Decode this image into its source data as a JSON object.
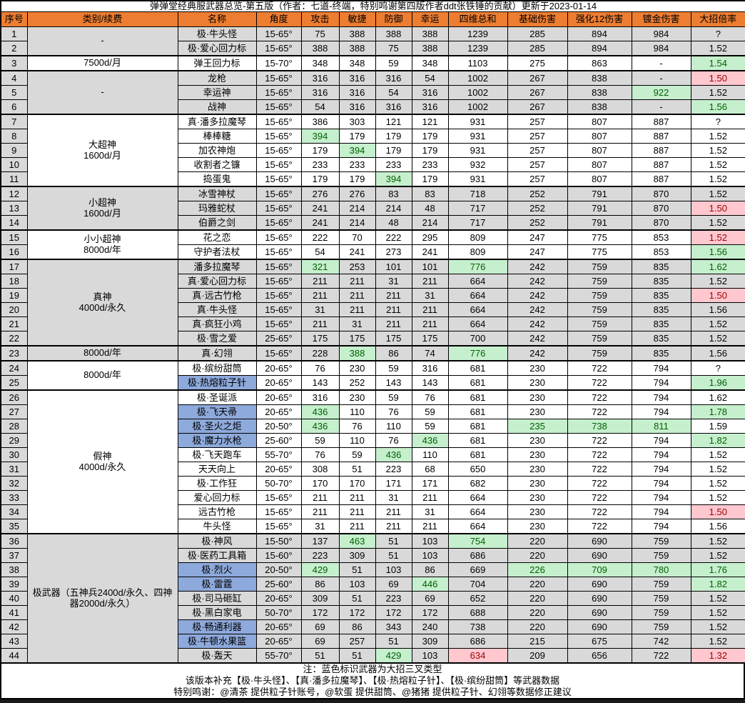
{
  "title": "弹弹堂经典服武器总览-第五版（作者：七道-终端，特别鸣谢第四版作者ddt张铁锤的贡献）更新于2023-01-14",
  "columns": [
    "序号",
    "类别/续费",
    "名称",
    "角度",
    "攻击",
    "敏捷",
    "防御",
    "幸运",
    "四维总和",
    "基础伤害",
    "强化12伤害",
    "镀金伤害",
    "大招倍率"
  ],
  "column_keys": [
    "no",
    "category",
    "name",
    "angle",
    "atk",
    "agi",
    "def",
    "luck",
    "total",
    "base",
    "p12",
    "gold",
    "ult"
  ],
  "groups": [
    {
      "label": "-",
      "start": 1,
      "end": 2,
      "gray": true
    },
    {
      "label": "7500d/月",
      "start": 3,
      "end": 3,
      "gray": false
    },
    {
      "label": "-",
      "start": 4,
      "end": 6,
      "gray": true
    },
    {
      "label": "大超神\n1600d/月",
      "start": 7,
      "end": 11,
      "gray": false
    },
    {
      "label": "小超神\n1600d/月",
      "start": 12,
      "end": 14,
      "gray": true
    },
    {
      "label": "小小超神\n8000d/年",
      "start": 15,
      "end": 16,
      "gray": false
    },
    {
      "label": "真神\n4000d/永久",
      "start": 17,
      "end": 22,
      "gray": true
    },
    {
      "label": "8000d/年",
      "start": 23,
      "end": 23,
      "gray": true
    },
    {
      "label": "8000d/年",
      "start": 24,
      "end": 25,
      "gray": false
    },
    {
      "label": "假神\n4000d/永久",
      "start": 26,
      "end": 35,
      "gray": false
    },
    {
      "label": "极武器（五神兵2400d/永久、四神器2000d/永久）",
      "start": 36,
      "end": 44,
      "gray": true
    }
  ],
  "rows": [
    {
      "no": 1,
      "name": "极·牛头怪",
      "blue": false,
      "angle": "15-65°",
      "atk": "75",
      "agi": "388",
      "def": "388",
      "luck": "388",
      "total": "1239",
      "base": "285",
      "p12": "894",
      "gold": "984",
      "ult": "?",
      "hl": {}
    },
    {
      "no": 2,
      "name": "极·爱心回力标",
      "blue": false,
      "angle": "15-65°",
      "atk": "388",
      "agi": "388",
      "def": "75",
      "luck": "388",
      "total": "1239",
      "base": "285",
      "p12": "894",
      "gold": "984",
      "ult": "1.52",
      "hl": {}
    },
    {
      "no": 3,
      "name": "弹王回力标",
      "blue": false,
      "angle": "15-70°",
      "atk": "348",
      "agi": "348",
      "def": "59",
      "luck": "348",
      "total": "1103",
      "base": "275",
      "p12": "863",
      "gold": "-",
      "ult": "1.54",
      "hl": {
        "ult": "g"
      }
    },
    {
      "no": 4,
      "name": "龙枪",
      "blue": false,
      "angle": "15-65°",
      "atk": "316",
      "agi": "316",
      "def": "316",
      "luck": "54",
      "total": "1002",
      "base": "267",
      "p12": "838",
      "gold": "-",
      "ult": "1.50",
      "hl": {
        "ult": "r"
      }
    },
    {
      "no": 5,
      "name": "幸运神",
      "blue": false,
      "angle": "15-65°",
      "atk": "316",
      "agi": "316",
      "def": "54",
      "luck": "316",
      "total": "1002",
      "base": "267",
      "p12": "838",
      "gold": "922",
      "ult": "1.52",
      "hl": {
        "gold": "g"
      }
    },
    {
      "no": 6,
      "name": "战神",
      "blue": false,
      "angle": "15-65°",
      "atk": "54",
      "agi": "316",
      "def": "316",
      "luck": "316",
      "total": "1002",
      "base": "267",
      "p12": "838",
      "gold": "-",
      "ult": "1.56",
      "hl": {
        "ult": "g"
      }
    },
    {
      "no": 7,
      "name": "真·潘多拉魔琴",
      "blue": false,
      "angle": "15-65°",
      "atk": "386",
      "agi": "303",
      "def": "121",
      "luck": "121",
      "total": "931",
      "base": "257",
      "p12": "807",
      "gold": "887",
      "ult": "?",
      "hl": {}
    },
    {
      "no": 8,
      "name": "棒棒糖",
      "blue": false,
      "angle": "15-65°",
      "atk": "394",
      "agi": "179",
      "def": "179",
      "luck": "179",
      "total": "931",
      "base": "257",
      "p12": "807",
      "gold": "887",
      "ult": "1.52",
      "hl": {
        "atk": "g"
      }
    },
    {
      "no": 9,
      "name": "加农神炮",
      "blue": false,
      "angle": "15-65°",
      "atk": "179",
      "agi": "394",
      "def": "179",
      "luck": "179",
      "total": "931",
      "base": "257",
      "p12": "807",
      "gold": "887",
      "ult": "1.52",
      "hl": {
        "agi": "g"
      }
    },
    {
      "no": 10,
      "name": "收割者之镰",
      "blue": false,
      "angle": "15-65°",
      "atk": "233",
      "agi": "233",
      "def": "233",
      "luck": "233",
      "total": "932",
      "base": "257",
      "p12": "807",
      "gold": "887",
      "ult": "1.52",
      "hl": {}
    },
    {
      "no": 11,
      "name": "捣蛋鬼",
      "blue": false,
      "angle": "15-65°",
      "atk": "179",
      "agi": "179",
      "def": "394",
      "luck": "179",
      "total": "931",
      "base": "257",
      "p12": "807",
      "gold": "887",
      "ult": "1.52",
      "hl": {
        "def": "g"
      }
    },
    {
      "no": 12,
      "name": "冰雪神杖",
      "blue": false,
      "angle": "15-65°",
      "atk": "276",
      "agi": "276",
      "def": "83",
      "luck": "83",
      "total": "718",
      "base": "252",
      "p12": "791",
      "gold": "870",
      "ult": "1.52",
      "hl": {}
    },
    {
      "no": 13,
      "name": "玛雅蛇杖",
      "blue": false,
      "angle": "15-65°",
      "atk": "241",
      "agi": "214",
      "def": "214",
      "luck": "48",
      "total": "717",
      "base": "252",
      "p12": "791",
      "gold": "870",
      "ult": "1.50",
      "hl": {
        "ult": "r"
      }
    },
    {
      "no": 14,
      "name": "伯爵之剑",
      "blue": false,
      "angle": "15-65°",
      "atk": "241",
      "agi": "214",
      "def": "48",
      "luck": "214",
      "total": "717",
      "base": "252",
      "p12": "791",
      "gold": "870",
      "ult": "1.52",
      "hl": {}
    },
    {
      "no": 15,
      "name": "花之恋",
      "blue": false,
      "angle": "15-65°",
      "atk": "222",
      "agi": "70",
      "def": "222",
      "luck": "295",
      "total": "809",
      "base": "247",
      "p12": "775",
      "gold": "853",
      "ult": "1.52",
      "hl": {
        "ult": "r"
      }
    },
    {
      "no": 16,
      "name": "守护者法杖",
      "blue": false,
      "angle": "15-65°",
      "atk": "54",
      "agi": "241",
      "def": "273",
      "luck": "241",
      "total": "809",
      "base": "247",
      "p12": "775",
      "gold": "853",
      "ult": "1.56",
      "hl": {
        "ult": "g"
      }
    },
    {
      "no": 17,
      "name": "潘多拉魔琴",
      "blue": false,
      "angle": "15-65°",
      "atk": "321",
      "agi": "253",
      "def": "101",
      "luck": "101",
      "total": "776",
      "base": "242",
      "p12": "759",
      "gold": "835",
      "ult": "1.62",
      "hl": {
        "atk": "g",
        "total": "g",
        "ult": "g"
      }
    },
    {
      "no": 18,
      "name": "真·爱心回力标",
      "blue": false,
      "angle": "15-65°",
      "atk": "211",
      "agi": "211",
      "def": "31",
      "luck": "211",
      "total": "664",
      "base": "242",
      "p12": "759",
      "gold": "835",
      "ult": "1.52",
      "hl": {}
    },
    {
      "no": 19,
      "name": "真·远古竹枪",
      "blue": false,
      "angle": "15-65°",
      "atk": "211",
      "agi": "211",
      "def": "211",
      "luck": "31",
      "total": "664",
      "base": "242",
      "p12": "759",
      "gold": "835",
      "ult": "1.50",
      "hl": {
        "ult": "r"
      }
    },
    {
      "no": 20,
      "name": "真·牛头怪",
      "blue": false,
      "angle": "15-65°",
      "atk": "31",
      "agi": "211",
      "def": "211",
      "luck": "211",
      "total": "664",
      "base": "242",
      "p12": "759",
      "gold": "835",
      "ult": "1.56",
      "hl": {}
    },
    {
      "no": 21,
      "name": "真·疯狂小鸡",
      "blue": false,
      "angle": "15-65°",
      "atk": "211",
      "agi": "31",
      "def": "211",
      "luck": "211",
      "total": "664",
      "base": "242",
      "p12": "759",
      "gold": "835",
      "ult": "1.52",
      "hl": {}
    },
    {
      "no": 22,
      "name": "极·雪之爱",
      "blue": false,
      "angle": "25-65°",
      "atk": "175",
      "agi": "175",
      "def": "175",
      "luck": "175",
      "total": "700",
      "base": "242",
      "p12": "759",
      "gold": "835",
      "ult": "1.52",
      "hl": {}
    },
    {
      "no": 23,
      "name": "真·幻翎",
      "blue": false,
      "angle": "15-65°",
      "atk": "228",
      "agi": "388",
      "def": "86",
      "luck": "74",
      "total": "776",
      "base": "242",
      "p12": "759",
      "gold": "835",
      "ult": "1.56",
      "hl": {
        "agi": "g",
        "total": "g"
      }
    },
    {
      "no": 24,
      "name": "极·缤纷甜筒",
      "blue": false,
      "angle": "20-65°",
      "atk": "76",
      "agi": "230",
      "def": "59",
      "luck": "316",
      "total": "681",
      "base": "230",
      "p12": "722",
      "gold": "794",
      "ult": "?",
      "hl": {}
    },
    {
      "no": 25,
      "name": "极·热熔粒子针",
      "blue": true,
      "angle": "20-65°",
      "atk": "143",
      "agi": "252",
      "def": "143",
      "luck": "143",
      "total": "681",
      "base": "230",
      "p12": "722",
      "gold": "794",
      "ult": "1.96",
      "hl": {
        "ult": "g"
      }
    },
    {
      "no": 26,
      "name": "极·圣诞派",
      "blue": false,
      "angle": "20-65°",
      "atk": "316",
      "agi": "230",
      "def": "59",
      "luck": "76",
      "total": "681",
      "base": "230",
      "p12": "722",
      "gold": "794",
      "ult": "1.62",
      "hl": {}
    },
    {
      "no": 27,
      "name": "极·飞天帚",
      "blue": true,
      "angle": "20-65°",
      "atk": "436",
      "agi": "110",
      "def": "76",
      "luck": "59",
      "total": "681",
      "base": "230",
      "p12": "722",
      "gold": "794",
      "ult": "1.78",
      "hl": {
        "atk": "g",
        "ult": "g"
      }
    },
    {
      "no": 28,
      "name": "极·圣火之炬",
      "blue": true,
      "angle": "20-50°",
      "atk": "436",
      "agi": "76",
      "def": "110",
      "luck": "59",
      "total": "681",
      "base": "235",
      "p12": "738",
      "gold": "811",
      "ult": "1.59",
      "hl": {
        "atk": "g",
        "base": "g",
        "p12": "g",
        "gold": "g"
      }
    },
    {
      "no": 29,
      "name": "极·魔力水枪",
      "blue": true,
      "angle": "25-60°",
      "atk": "59",
      "agi": "110",
      "def": "76",
      "luck": "436",
      "total": "681",
      "base": "230",
      "p12": "722",
      "gold": "794",
      "ult": "1.82",
      "hl": {
        "luck": "g",
        "ult": "g"
      }
    },
    {
      "no": 30,
      "name": "极·飞天跑车",
      "blue": false,
      "angle": "55-70°",
      "atk": "76",
      "agi": "59",
      "def": "436",
      "luck": "110",
      "total": "681",
      "base": "230",
      "p12": "722",
      "gold": "794",
      "ult": "1.52",
      "hl": {
        "def": "g"
      }
    },
    {
      "no": 31,
      "name": "天天向上",
      "blue": false,
      "angle": "20-65°",
      "atk": "308",
      "agi": "51",
      "def": "223",
      "luck": "68",
      "total": "650",
      "base": "230",
      "p12": "722",
      "gold": "794",
      "ult": "1.52",
      "hl": {}
    },
    {
      "no": 32,
      "name": "极·工作狂",
      "blue": false,
      "angle": "50-70°",
      "atk": "170",
      "agi": "170",
      "def": "171",
      "luck": "171",
      "total": "682",
      "base": "230",
      "p12": "722",
      "gold": "794",
      "ult": "1.52",
      "hl": {}
    },
    {
      "no": 33,
      "name": "爱心回力标",
      "blue": false,
      "angle": "15-65°",
      "atk": "211",
      "agi": "211",
      "def": "31",
      "luck": "211",
      "total": "664",
      "base": "230",
      "p12": "722",
      "gold": "794",
      "ult": "1.52",
      "hl": {}
    },
    {
      "no": 34,
      "name": "远古竹枪",
      "blue": false,
      "angle": "15-65°",
      "atk": "211",
      "agi": "211",
      "def": "211",
      "luck": "31",
      "total": "664",
      "base": "230",
      "p12": "722",
      "gold": "794",
      "ult": "1.50",
      "hl": {
        "ult": "r"
      }
    },
    {
      "no": 35,
      "name": "牛头怪",
      "blue": false,
      "angle": "15-65°",
      "atk": "31",
      "agi": "211",
      "def": "211",
      "luck": "211",
      "total": "664",
      "base": "230",
      "p12": "722",
      "gold": "794",
      "ult": "1.56",
      "hl": {}
    },
    {
      "no": 36,
      "name": "极·神风",
      "blue": false,
      "angle": "15-50°",
      "atk": "137",
      "agi": "463",
      "def": "51",
      "luck": "103",
      "total": "754",
      "base": "220",
      "p12": "690",
      "gold": "759",
      "ult": "1.52",
      "hl": {
        "agi": "g",
        "total": "g"
      }
    },
    {
      "no": 37,
      "name": "极·医药工具箱",
      "blue": false,
      "angle": "15-60°",
      "atk": "223",
      "agi": "309",
      "def": "51",
      "luck": "103",
      "total": "686",
      "base": "220",
      "p12": "690",
      "gold": "759",
      "ult": "1.52",
      "hl": {}
    },
    {
      "no": 38,
      "name": "极·烈火",
      "blue": true,
      "angle": "20-50°",
      "atk": "429",
      "agi": "51",
      "def": "103",
      "luck": "86",
      "total": "669",
      "base": "226",
      "p12": "709",
      "gold": "780",
      "ult": "1.76",
      "hl": {
        "atk": "g",
        "base": "g",
        "p12": "g",
        "gold": "g",
        "ult": "g"
      }
    },
    {
      "no": 39,
      "name": "极·雷霆",
      "blue": true,
      "angle": "25-60°",
      "atk": "86",
      "agi": "103",
      "def": "69",
      "luck": "446",
      "total": "704",
      "base": "220",
      "p12": "690",
      "gold": "759",
      "ult": "1.82",
      "hl": {
        "luck": "g",
        "ult": "g"
      }
    },
    {
      "no": 40,
      "name": "极·司马砸缸",
      "blue": false,
      "angle": "20-65°",
      "atk": "309",
      "agi": "51",
      "def": "223",
      "luck": "69",
      "total": "652",
      "base": "220",
      "p12": "690",
      "gold": "759",
      "ult": "1.52",
      "hl": {}
    },
    {
      "no": 41,
      "name": "极·黑白家电",
      "blue": false,
      "angle": "50-70°",
      "atk": "172",
      "agi": "172",
      "def": "172",
      "luck": "172",
      "total": "688",
      "base": "220",
      "p12": "690",
      "gold": "759",
      "ult": "1.52",
      "hl": {}
    },
    {
      "no": 42,
      "name": "极·畅通利器",
      "blue": true,
      "angle": "20-65°",
      "atk": "69",
      "agi": "86",
      "def": "343",
      "luck": "240",
      "total": "738",
      "base": "220",
      "p12": "690",
      "gold": "759",
      "ult": "1.52",
      "hl": {}
    },
    {
      "no": 43,
      "name": "极·牛顿水果篮",
      "blue": true,
      "angle": "20-65°",
      "atk": "69",
      "agi": "257",
      "def": "51",
      "luck": "309",
      "total": "686",
      "base": "215",
      "p12": "675",
      "gold": "742",
      "ult": "1.52",
      "hl": {}
    },
    {
      "no": 44,
      "name": "极·轰天",
      "blue": false,
      "angle": "55-70°",
      "atk": "51",
      "agi": "51",
      "def": "429",
      "luck": "103",
      "total": "634",
      "base": "209",
      "p12": "656",
      "gold": "722",
      "ult": "1.32",
      "hl": {
        "def": "g",
        "total": "r",
        "ult": "r"
      }
    }
  ],
  "notes": [
    "注：蓝色标识武器为大招三叉类型",
    "该版本补充【极·牛头怪】、【真·潘多拉魔琴】、【极·热熔粒子针】、【极·缤纷甜筒】等武器数据",
    "特别鸣谢：@清茶 提供粒子针账号，@软蛋 提供甜筒、@猪猪 提供粒子针、幻翎等数据修正建议"
  ],
  "colors": {
    "header_bg": "#ED7D31",
    "band_gray": "#D9D9D9",
    "blue_name_bg": "#8EA9DB",
    "good_bg": "#C6EFCE",
    "good_text": "#006100",
    "bad_bg": "#FFC7CE",
    "bad_text": "#9C0006"
  }
}
